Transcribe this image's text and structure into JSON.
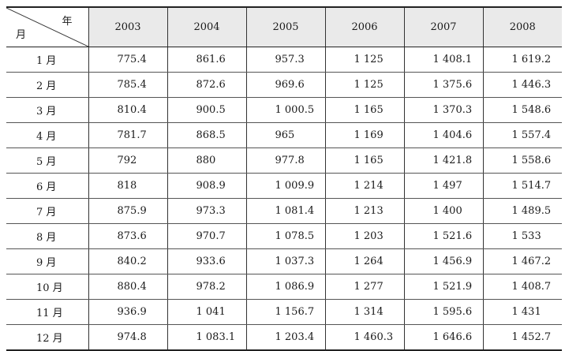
{
  "header": {
    "corner_year": "年",
    "corner_month": "月",
    "years": [
      "2003",
      "2004",
      "2005",
      "2006",
      "2007",
      "2008"
    ]
  },
  "rows": [
    {
      "month": "1 月",
      "values": [
        "775.4",
        "861.6",
        "957.3",
        "1 125",
        "1 408.1",
        "1 619.2"
      ]
    },
    {
      "month": "2 月",
      "values": [
        "785.4",
        "872.6",
        "969.6",
        "1 125",
        "1 375.6",
        "1 446.3"
      ]
    },
    {
      "month": "3 月",
      "values": [
        "810.4",
        "900.5",
        "1 000.5",
        "1 165",
        "1 370.3",
        "1 548.6"
      ]
    },
    {
      "month": "4 月",
      "values": [
        "781.7",
        "868.5",
        "965",
        "1 169",
        "1 404.6",
        "1 557.4"
      ]
    },
    {
      "month": "5 月",
      "values": [
        "792",
        "880",
        "977.8",
        "1 165",
        "1 421.8",
        "1 558.6"
      ]
    },
    {
      "month": "6 月",
      "values": [
        "818",
        "908.9",
        "1 009.9",
        "1 214",
        "1 497",
        "1 514.7"
      ]
    },
    {
      "month": "7 月",
      "values": [
        "875.9",
        "973.3",
        "1 081.4",
        "1 213",
        "1 400",
        "1 489.5"
      ]
    },
    {
      "month": "8 月",
      "values": [
        "873.6",
        "970.7",
        "1 078.5",
        "1 203",
        "1 521.6",
        "1 533"
      ]
    },
    {
      "month": "9 月",
      "values": [
        "840.2",
        "933.6",
        "1 037.3",
        "1 264",
        "1 456.9",
        "1 467.2"
      ]
    },
    {
      "month": "10 月",
      "values": [
        "880.4",
        "978.2",
        "1 086.9",
        "1 277",
        "1 521.9",
        "1 408.7"
      ]
    },
    {
      "month": "11 月",
      "values": [
        "936.9",
        "1 041",
        "1 156.7",
        "1 314",
        "1 595.6",
        "1 431"
      ]
    },
    {
      "month": "12 月",
      "values": [
        "974.8",
        "1 083.1",
        "1 203.4",
        "1 460.3",
        "1 646.6",
        "1 452.7"
      ]
    }
  ]
}
